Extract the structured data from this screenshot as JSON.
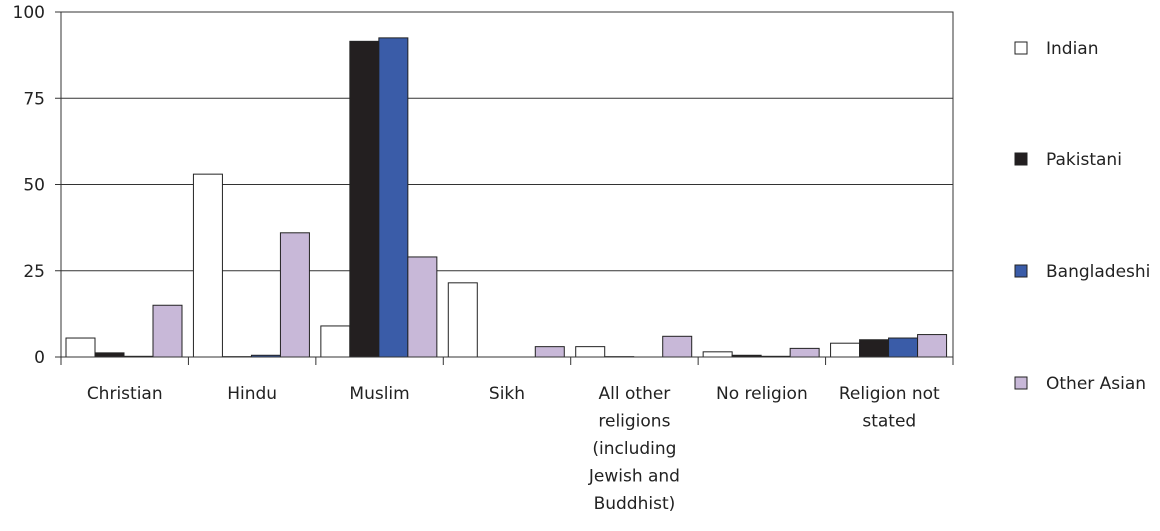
{
  "chart_data": {
    "type": "bar",
    "title": "",
    "xlabel": "",
    "ylabel": "",
    "ylim": [
      0,
      100
    ],
    "yticks": [
      "0",
      "25",
      "50",
      "75",
      "100"
    ],
    "grid": true,
    "legend_position": "right",
    "categories": [
      [
        "Christian"
      ],
      [
        "Hindu"
      ],
      [
        "Muslim"
      ],
      [
        "Sikh"
      ],
      [
        "All other",
        "religions",
        "(including",
        "Jewish and",
        "Buddhist)"
      ],
      [
        "No religion"
      ],
      [
        "Religion not",
        "stated"
      ]
    ],
    "series": [
      {
        "name": "Indian",
        "color": "#ffffff",
        "values": [
          5.5,
          53,
          9,
          21.5,
          3,
          1.5,
          4
        ]
      },
      {
        "name": "Pakistani",
        "color": "#231f20",
        "values": [
          1.2,
          0.1,
          91.5,
          0,
          0.1,
          0.5,
          5
        ]
      },
      {
        "name": "Bangladeshi",
        "color": "#3a5ca8",
        "values": [
          0.2,
          0.5,
          92.5,
          0,
          0,
          0.2,
          5.5
        ]
      },
      {
        "name": "Other Asian",
        "color": "#c8b8d8",
        "values": [
          15,
          36,
          29,
          3,
          6,
          2.5,
          6.5
        ]
      }
    ]
  }
}
